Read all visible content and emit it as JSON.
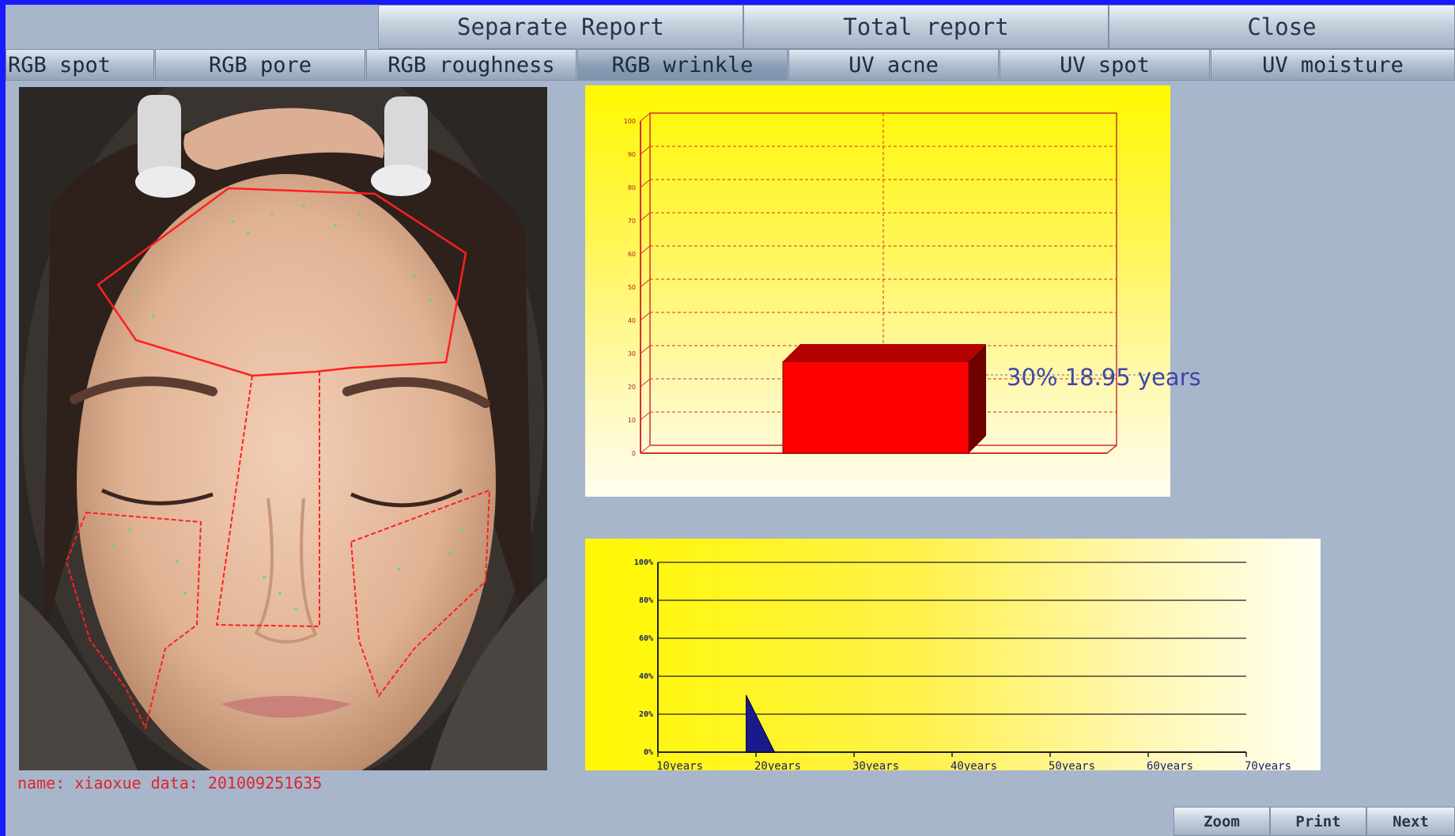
{
  "top_buttons": {
    "separate_report": "Separate Report",
    "total_report": "Total report",
    "close": "Close"
  },
  "tabs": [
    {
      "label": "RGB spot"
    },
    {
      "label": "RGB pore"
    },
    {
      "label": "RGB roughness"
    },
    {
      "label": "RGB wrinkle",
      "active": true
    },
    {
      "label": "UV acne"
    },
    {
      "label": "UV spot"
    },
    {
      "label": "UV moisture"
    }
  ],
  "caption": "name: xiaoxue data: 201009251635",
  "bottom_buttons": {
    "zoom": "Zoom",
    "print": "Print",
    "next": "Next"
  },
  "chart_data": [
    {
      "type": "bar",
      "title": "",
      "ylim": [
        0,
        100
      ],
      "yticks": [
        "0",
        "10",
        "20",
        "30",
        "40",
        "50",
        "60",
        "70",
        "80",
        "90",
        "100"
      ],
      "values": [
        30
      ],
      "bar_color": "#ff0000",
      "annotation": "30%  18.95  years",
      "grid": true
    },
    {
      "type": "area",
      "ylim": [
        0,
        100
      ],
      "yticks": [
        "0%",
        "20%",
        "40%",
        "60%",
        "80%",
        "100%"
      ],
      "xticks": [
        "10years",
        "20years",
        "30years",
        "40years",
        "50years",
        "60years",
        "70years"
      ],
      "xlim": [
        10,
        70
      ],
      "points": [
        [
          19,
          0
        ],
        [
          19,
          30
        ],
        [
          21.9,
          0
        ]
      ],
      "fill_color": "#1a1a8c",
      "grid": true
    }
  ]
}
